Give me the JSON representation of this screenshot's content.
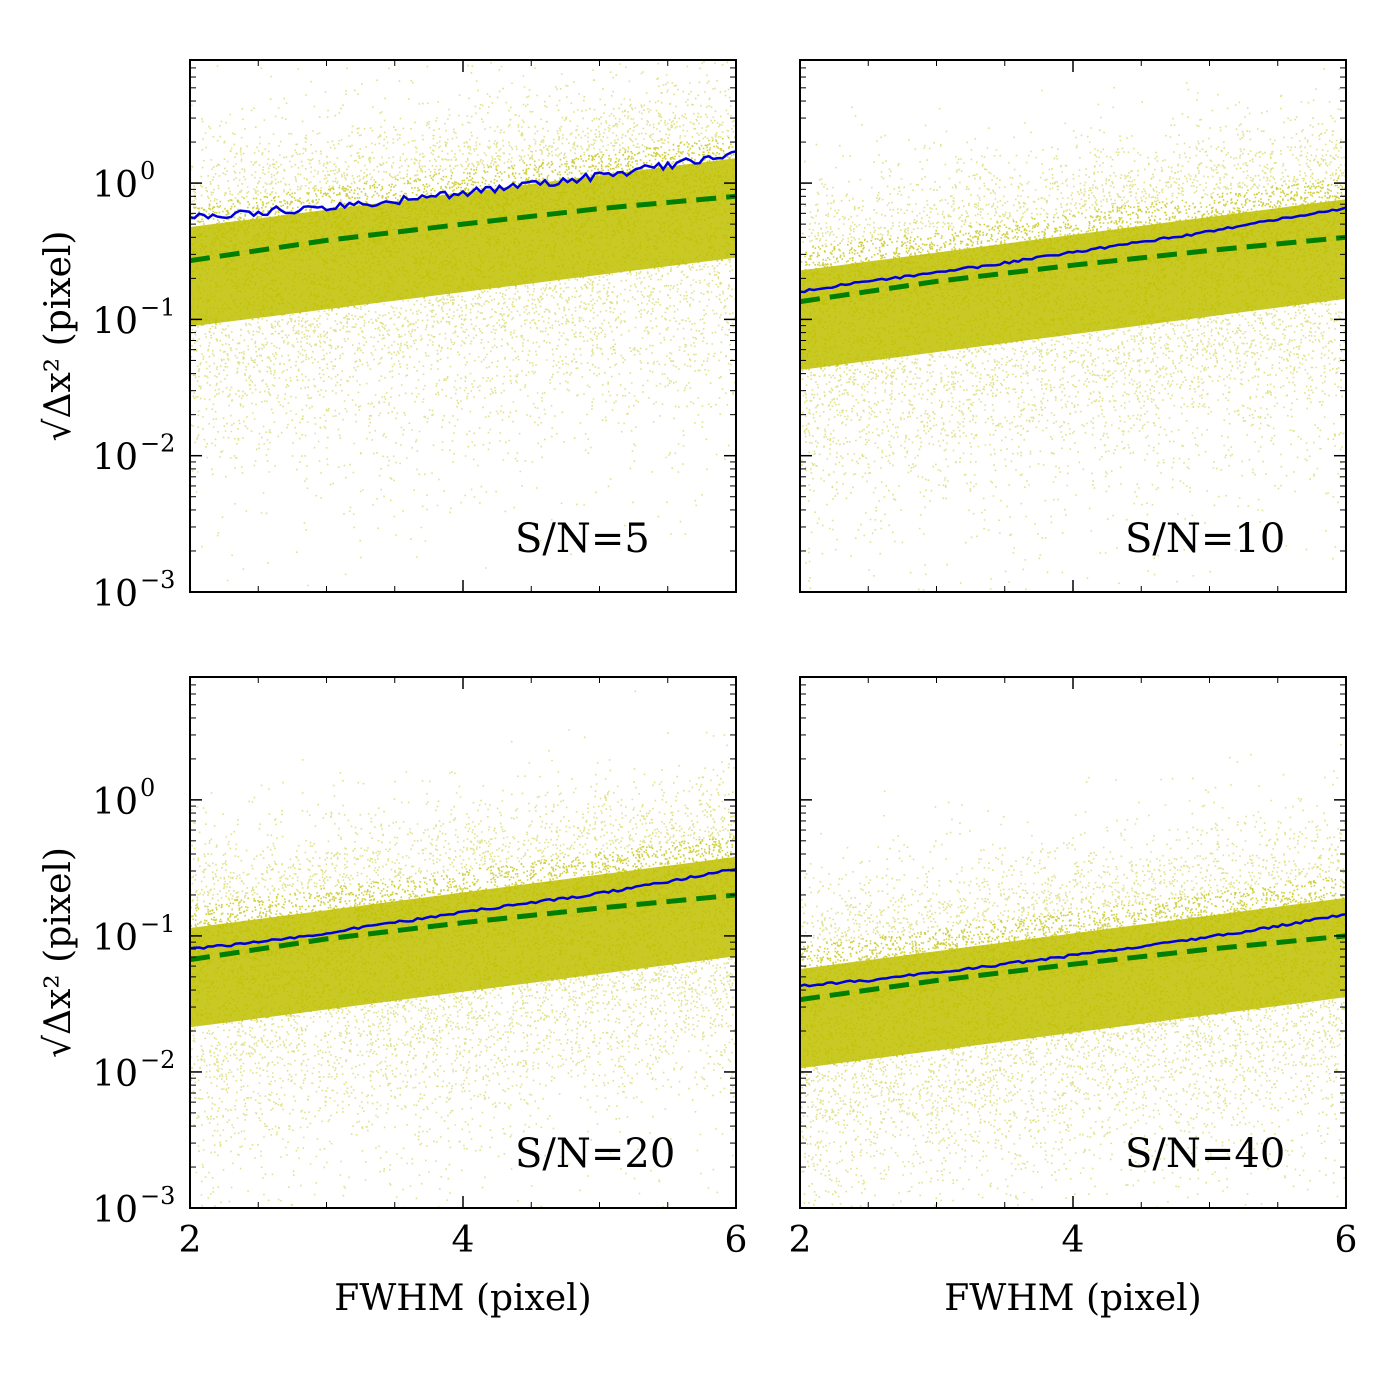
{
  "colors": {
    "scatter": "#bfbf00",
    "median_line": "#0000dd",
    "theory_line": "#007f00",
    "frame": "#000000"
  },
  "chart_data": [
    {
      "type": "scatter",
      "annotation": "S/N=5",
      "xlabel": "",
      "ylabel": "√Δx² (pixel)",
      "xlim": [
        2,
        6
      ],
      "ylim": [
        0.001,
        8
      ],
      "yscale": "log",
      "xticks": [
        2,
        4,
        6
      ],
      "xticklabels": [],
      "yticks": [
        0.001,
        0.01,
        0.1,
        1
      ],
      "yticklabels": [
        {
          "base": "10",
          "exp": "−3"
        },
        {
          "base": "10",
          "exp": "−2"
        },
        {
          "base": "10",
          "exp": "−1"
        },
        {
          "base": "10",
          "exp": "0"
        }
      ],
      "scatter_center_at_x2": 0.25,
      "scatter_center_at_x6": 0.8,
      "series": [
        {
          "style": "solid",
          "x": [
            2,
            2.5,
            3,
            3.5,
            4,
            4.5,
            5,
            5.5,
            6
          ],
          "y": [
            0.55,
            0.62,
            0.66,
            0.74,
            0.85,
            0.98,
            1.12,
            1.35,
            1.65
          ]
        },
        {
          "style": "dashed",
          "x": [
            2,
            3,
            4,
            5,
            6
          ],
          "y": [
            0.27,
            0.38,
            0.5,
            0.65,
            0.8
          ]
        }
      ]
    },
    {
      "type": "scatter",
      "annotation": "S/N=10",
      "xlabel": "",
      "ylabel": "",
      "xlim": [
        2,
        6
      ],
      "ylim": [
        0.001,
        8
      ],
      "yscale": "log",
      "xticks": [
        2,
        4,
        6
      ],
      "xticklabels": [],
      "yticks": [
        0.001,
        0.01,
        0.1,
        1
      ],
      "yticklabels": [],
      "scatter_center_at_x2": 0.12,
      "scatter_center_at_x6": 0.4,
      "series": [
        {
          "style": "solid",
          "x": [
            2,
            2.5,
            3,
            3.5,
            4,
            4.5,
            5,
            5.5,
            6
          ],
          "y": [
            0.16,
            0.19,
            0.22,
            0.26,
            0.31,
            0.37,
            0.44,
            0.54,
            0.66
          ]
        },
        {
          "style": "dashed",
          "x": [
            2,
            3,
            4,
            5,
            6
          ],
          "y": [
            0.135,
            0.19,
            0.25,
            0.32,
            0.4
          ]
        }
      ]
    },
    {
      "type": "scatter",
      "annotation": "S/N=20",
      "xlabel": "FWHM (pixel)",
      "ylabel": "√Δx² (pixel)",
      "xlim": [
        2,
        6
      ],
      "ylim": [
        0.001,
        8
      ],
      "yscale": "log",
      "xticks": [
        2,
        4,
        6
      ],
      "xticklabels": [
        "2",
        "4",
        "6"
      ],
      "yticks": [
        0.001,
        0.01,
        0.1,
        1
      ],
      "yticklabels": [
        {
          "base": "10",
          "exp": "−3"
        },
        {
          "base": "10",
          "exp": "−2"
        },
        {
          "base": "10",
          "exp": "−1"
        },
        {
          "base": "10",
          "exp": "0"
        }
      ],
      "scatter_center_at_x2": 0.06,
      "scatter_center_at_x6": 0.2,
      "series": [
        {
          "style": "solid",
          "x": [
            2,
            2.5,
            3,
            3.5,
            4,
            4.5,
            5,
            5.5,
            6
          ],
          "y": [
            0.08,
            0.09,
            0.105,
            0.125,
            0.15,
            0.175,
            0.205,
            0.25,
            0.31
          ]
        },
        {
          "style": "dashed",
          "x": [
            2,
            3,
            4,
            5,
            6
          ],
          "y": [
            0.067,
            0.095,
            0.125,
            0.16,
            0.2
          ]
        }
      ]
    },
    {
      "type": "scatter",
      "annotation": "S/N=40",
      "xlabel": "FWHM (pixel)",
      "ylabel": "",
      "xlim": [
        2,
        6
      ],
      "ylim": [
        0.001,
        8
      ],
      "yscale": "log",
      "xticks": [
        2,
        4,
        6
      ],
      "xticklabels": [
        "2",
        "4",
        "6"
      ],
      "yticks": [
        0.001,
        0.01,
        0.1,
        1
      ],
      "yticklabels": [],
      "scatter_center_at_x2": 0.03,
      "scatter_center_at_x6": 0.1,
      "series": [
        {
          "style": "solid",
          "x": [
            2,
            2.5,
            3,
            3.5,
            4,
            4.5,
            5,
            5.5,
            6
          ],
          "y": [
            0.043,
            0.047,
            0.054,
            0.062,
            0.072,
            0.084,
            0.098,
            0.118,
            0.145
          ]
        },
        {
          "style": "dashed",
          "x": [
            2,
            3,
            4,
            5,
            6
          ],
          "y": [
            0.034,
            0.047,
            0.062,
            0.08,
            0.1
          ]
        }
      ]
    }
  ]
}
